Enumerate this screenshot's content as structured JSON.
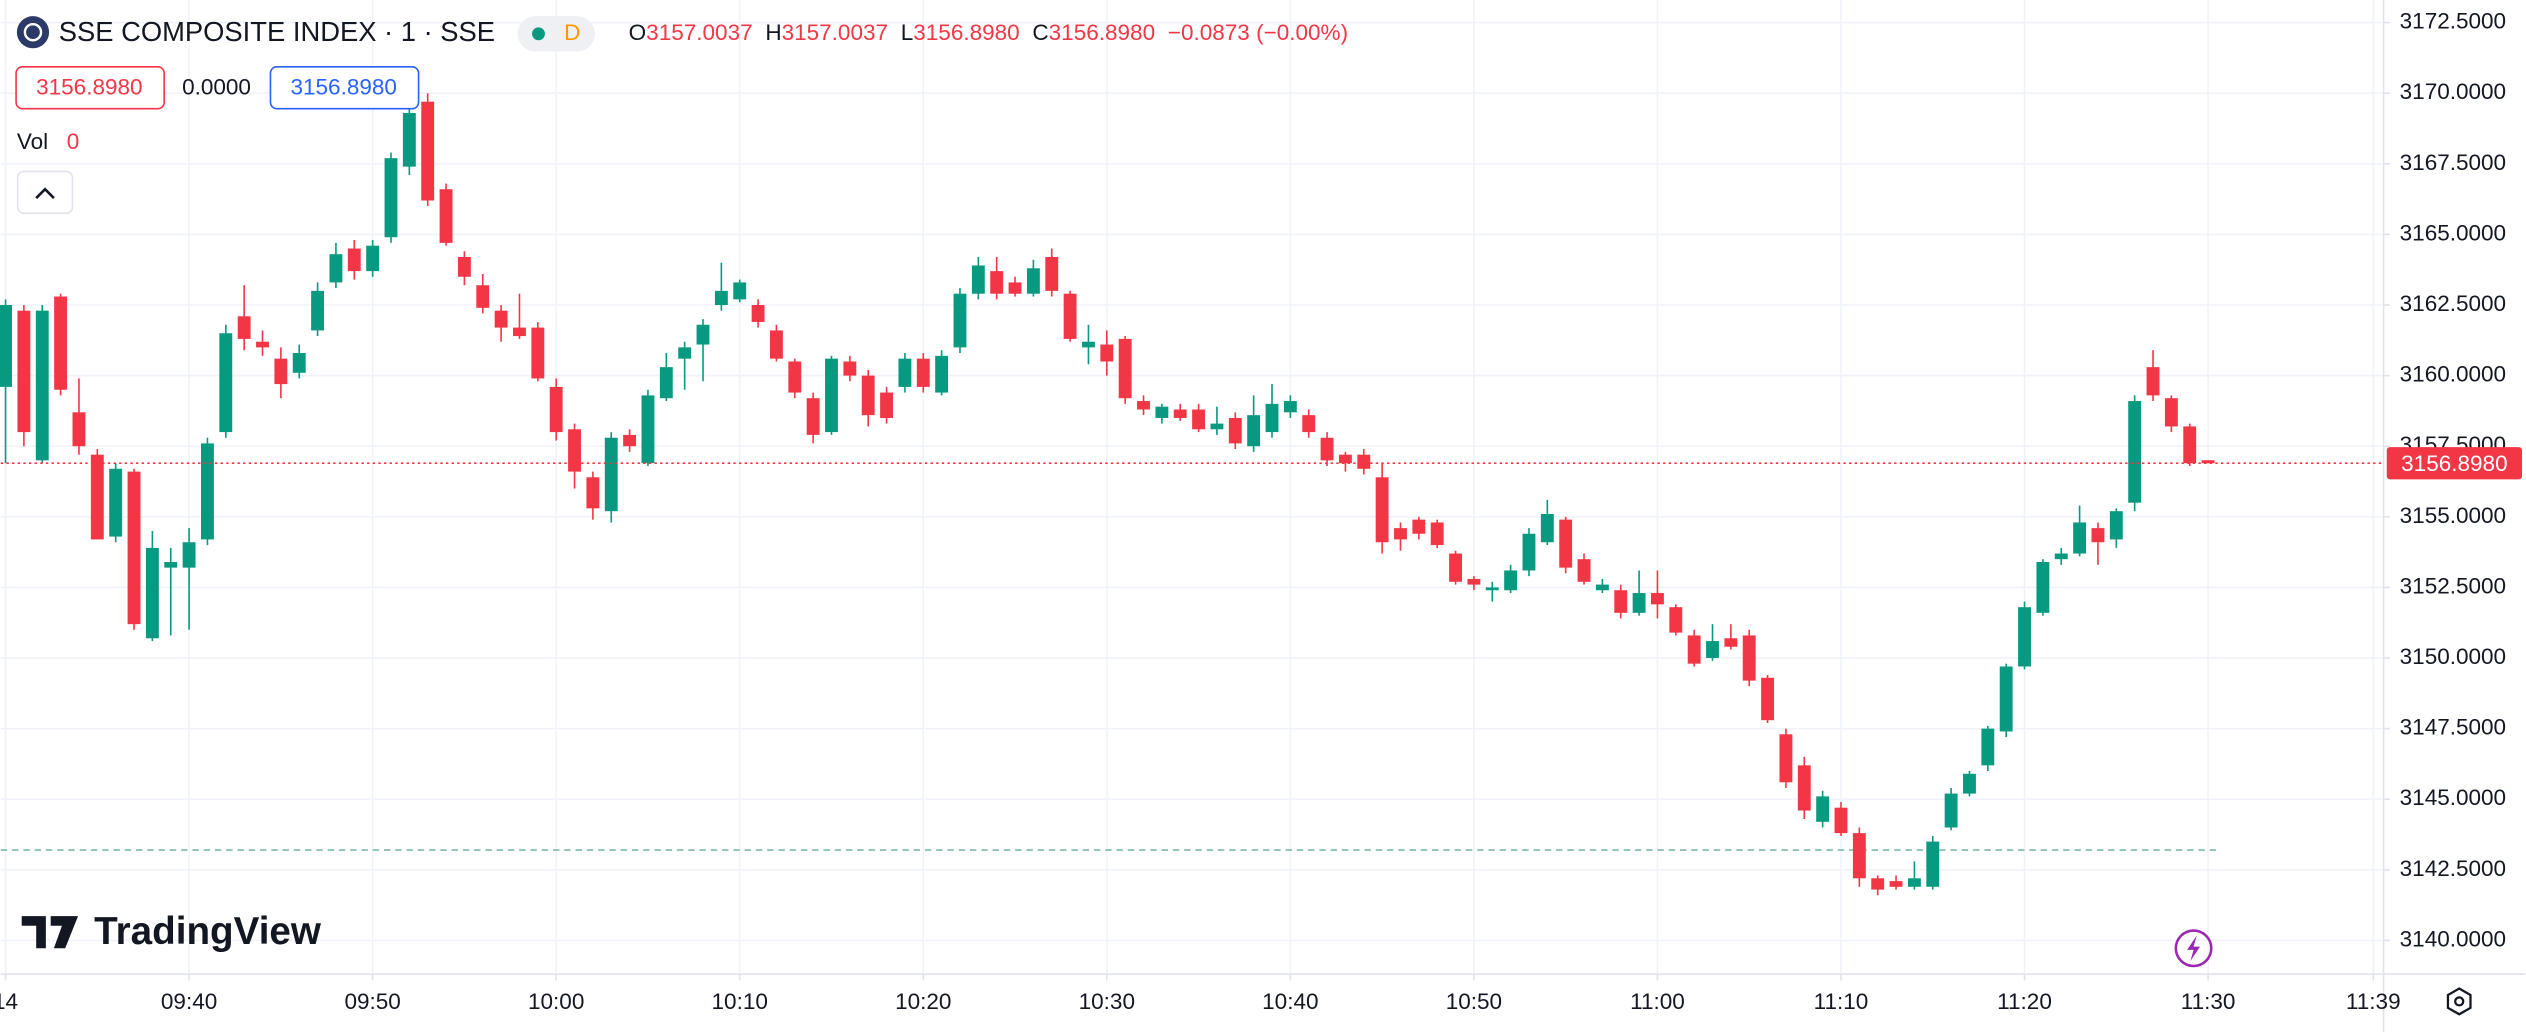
{
  "header": {
    "symbol": "SSE COMPOSITE INDEX · 1 · SSE",
    "badge": "D",
    "o_label": "O",
    "o": "3157.0037",
    "h_label": "H",
    "h": "3157.0037",
    "l_label": "L",
    "l": "3156.8980",
    "c_label": "C",
    "c": "3156.8980",
    "change": "−0.0873 (−0.00%)",
    "bid": "3156.8980",
    "spread": "0.0000",
    "ask": "3156.8980",
    "vol_label": "Vol",
    "vol": "0",
    "brand": "TradingView"
  },
  "chart_data": {
    "type": "candlestick",
    "up_color": "#089981",
    "down_color": "#f23645",
    "grid": true,
    "xlim": [
      -0.26,
      129.56
    ],
    "ylim": [
      3138.81,
      3173.3
    ],
    "xticks": [
      {
        "value": 0,
        "label": "14"
      },
      {
        "value": 10,
        "label": "09:40"
      },
      {
        "value": 20,
        "label": "09:50"
      },
      {
        "value": 30,
        "label": "10:00"
      },
      {
        "value": 40,
        "label": "10:10"
      },
      {
        "value": 50,
        "label": "10:20"
      },
      {
        "value": 60,
        "label": "10:30"
      },
      {
        "value": 70,
        "label": "10:40"
      },
      {
        "value": 80,
        "label": "10:50"
      },
      {
        "value": 90,
        "label": "11:00"
      },
      {
        "value": 100,
        "label": "11:10"
      },
      {
        "value": 110,
        "label": "11:20"
      },
      {
        "value": 120,
        "label": "11:30"
      },
      {
        "value": 129,
        "label": "11:39"
      }
    ],
    "yticks": [
      {
        "value": 3140,
        "label": "3140.0000"
      },
      {
        "value": 3142.5,
        "label": "3142.5000"
      },
      {
        "value": 3145,
        "label": "3145.0000"
      },
      {
        "value": 3147.5,
        "label": "3147.5000"
      },
      {
        "value": 3150,
        "label": "3150.0000"
      },
      {
        "value": 3152.5,
        "label": "3152.5000"
      },
      {
        "value": 3155,
        "label": "3155.0000"
      },
      {
        "value": 3157.5,
        "label": "3157.5000"
      },
      {
        "value": 3160,
        "label": "3160.0000"
      },
      {
        "value": 3162.5,
        "label": "3162.5000"
      },
      {
        "value": 3165,
        "label": "3165.0000"
      },
      {
        "value": 3167.5,
        "label": "3167.5000"
      },
      {
        "value": 3170,
        "label": "3170.0000"
      },
      {
        "value": 3172.5,
        "label": "3172.5000"
      }
    ],
    "last_price": {
      "value": 3156.898,
      "label": "3156.8980"
    },
    "baseline": 3143.2,
    "open": [
      3159.6,
      3162.3,
      3157.0,
      3162.8,
      3158.7,
      3157.2,
      3154.3,
      3156.6,
      3150.7,
      3153.2,
      3153.2,
      3154.2,
      3158.0,
      3162.1,
      3161.2,
      3160.6,
      3160.1,
      3161.6,
      3163.3,
      3164.5,
      3163.7,
      3164.9,
      3167.4,
      3169.7,
      3166.6,
      3164.2,
      3163.2,
      3162.3,
      3161.7,
      3161.7,
      3159.6,
      3158.1,
      3156.4,
      3155.2,
      3157.9,
      3156.9,
      3159.2,
      3160.6,
      3161.1,
      3162.5,
      3162.7,
      3162.5,
      3161.6,
      3160.5,
      3159.2,
      3158.0,
      3160.5,
      3160.0,
      3159.4,
      3159.6,
      3160.6,
      3159.4,
      3161.0,
      3162.9,
      3163.7,
      3163.3,
      3162.9,
      3164.2,
      3162.9,
      3161.0,
      3161.1,
      3161.3,
      3159.1,
      3158.5,
      3158.8,
      3158.8,
      3158.1,
      3158.5,
      3157.5,
      3158.0,
      3158.7,
      3158.6,
      3157.8,
      3157.2,
      3157.2,
      3156.4,
      3154.6,
      3154.9,
      3154.8,
      3153.7,
      3152.8,
      3152.4,
      3152.4,
      3153.1,
      3154.1,
      3154.9,
      3153.5,
      3152.4,
      3152.4,
      3151.6,
      3152.3,
      3151.8,
      3150.8,
      3150.0,
      3150.7,
      3150.8,
      3149.3,
      3147.3,
      3146.2,
      3144.2,
      3144.7,
      3143.8,
      3142.2,
      3142.1,
      3141.9,
      3141.9,
      3144.0,
      3145.2,
      3146.2,
      3147.4,
      3149.7,
      3151.6,
      3153.5,
      3153.7,
      3154.6,
      3154.2,
      3155.5,
      3160.3,
      3159.2,
      3158.2,
      3157.0037
    ],
    "high": [
      3162.7,
      3162.5,
      3162.5,
      3162.9,
      3159.9,
      3157.4,
      3156.9,
      3156.7,
      3154.5,
      3153.9,
      3154.6,
      3157.8,
      3161.8,
      3163.2,
      3161.6,
      3161.0,
      3161.1,
      3163.3,
      3164.7,
      3164.8,
      3164.8,
      3167.9,
      3170.0,
      3170.0,
      3166.8,
      3164.4,
      3163.6,
      3162.5,
      3162.9,
      3161.9,
      3159.9,
      3158.3,
      3156.6,
      3158.0,
      3158.1,
      3159.5,
      3160.8,
      3161.2,
      3162.0,
      3164.0,
      3163.4,
      3162.7,
      3161.8,
      3160.6,
      3159.4,
      3160.7,
      3160.7,
      3160.2,
      3159.6,
      3160.8,
      3160.8,
      3160.9,
      3163.1,
      3164.2,
      3164.2,
      3163.5,
      3164.1,
      3164.5,
      3163.0,
      3161.8,
      3161.6,
      3161.4,
      3159.3,
      3159.0,
      3159.0,
      3159.0,
      3158.9,
      3158.7,
      3159.3,
      3159.7,
      3159.3,
      3158.8,
      3158.0,
      3157.3,
      3157.4,
      3156.9,
      3154.8,
      3155.0,
      3154.9,
      3153.8,
      3152.9,
      3152.7,
      3153.3,
      3154.6,
      3155.6,
      3155.0,
      3153.7,
      3152.8,
      3152.6,
      3153.1,
      3153.1,
      3151.9,
      3151.0,
      3151.2,
      3151.2,
      3151.0,
      3149.4,
      3147.5,
      3146.5,
      3145.3,
      3144.9,
      3144.0,
      3142.3,
      3142.3,
      3142.8,
      3143.7,
      3145.4,
      3146.0,
      3147.6,
      3149.8,
      3152.0,
      3153.5,
      3153.9,
      3155.4,
      3154.8,
      3155.3,
      3159.3,
      3160.9,
      3159.3,
      3158.3,
      3157.0037
    ],
    "low": [
      3156.9,
      3157.5,
      3156.9,
      3159.3,
      3157.2,
      3154.2,
      3154.1,
      3151.0,
      3150.6,
      3150.8,
      3151.0,
      3154.0,
      3157.8,
      3160.9,
      3160.7,
      3159.2,
      3159.9,
      3161.4,
      3163.1,
      3163.4,
      3163.5,
      3164.7,
      3167.1,
      3166.0,
      3164.6,
      3163.2,
      3162.2,
      3161.2,
      3161.3,
      3159.8,
      3157.7,
      3156.0,
      3154.9,
      3154.8,
      3157.3,
      3156.8,
      3159.1,
      3159.5,
      3159.8,
      3162.3,
      3162.6,
      3161.7,
      3160.5,
      3159.2,
      3157.6,
      3157.9,
      3159.8,
      3158.2,
      3158.3,
      3159.4,
      3159.4,
      3159.3,
      3160.8,
      3162.7,
      3162.7,
      3162.8,
      3162.8,
      3162.8,
      3161.2,
      3160.4,
      3160.0,
      3159.0,
      3158.6,
      3158.3,
      3158.4,
      3158.0,
      3157.9,
      3157.4,
      3157.3,
      3157.8,
      3158.5,
      3157.8,
      3156.8,
      3156.6,
      3156.5,
      3153.7,
      3153.8,
      3154.2,
      3153.9,
      3152.6,
      3152.4,
      3152.0,
      3152.3,
      3152.9,
      3154.0,
      3153.0,
      3152.6,
      3152.3,
      3151.4,
      3151.5,
      3151.4,
      3150.8,
      3149.7,
      3149.9,
      3150.3,
      3149.0,
      3147.7,
      3145.4,
      3144.3,
      3144.0,
      3143.7,
      3141.9,
      3141.6,
      3141.8,
      3141.8,
      3141.8,
      3143.9,
      3145.1,
      3146.0,
      3147.2,
      3149.6,
      3151.5,
      3153.3,
      3153.6,
      3153.3,
      3153.9,
      3155.2,
      3159.1,
      3158.0,
      3156.8,
      3156.898
    ],
    "close": [
      3162.5,
      3158.0,
      3162.3,
      3159.5,
      3157.5,
      3154.2,
      3156.7,
      3151.2,
      3153.9,
      3153.4,
      3154.1,
      3157.6,
      3161.5,
      3161.3,
      3161.0,
      3159.7,
      3160.8,
      3163.0,
      3164.3,
      3163.7,
      3164.6,
      3167.7,
      3169.3,
      3166.2,
      3164.7,
      3163.5,
      3162.4,
      3161.7,
      3161.4,
      3159.9,
      3158.0,
      3156.6,
      3155.3,
      3157.8,
      3157.5,
      3159.3,
      3160.3,
      3161.0,
      3161.8,
      3163.0,
      3163.3,
      3161.9,
      3160.6,
      3159.4,
      3157.9,
      3160.6,
      3160.0,
      3158.6,
      3158.5,
      3160.6,
      3159.6,
      3160.7,
      3162.9,
      3163.9,
      3162.9,
      3162.9,
      3163.8,
      3163.0,
      3161.3,
      3161.2,
      3160.5,
      3159.2,
      3158.8,
      3158.9,
      3158.5,
      3158.1,
      3158.3,
      3157.6,
      3158.6,
      3159.0,
      3159.1,
      3158.0,
      3157.0,
      3156.9,
      3156.7,
      3154.1,
      3154.2,
      3154.4,
      3154.0,
      3152.7,
      3152.6,
      3152.5,
      3153.1,
      3154.4,
      3155.1,
      3153.2,
      3152.7,
      3152.6,
      3151.6,
      3152.3,
      3151.9,
      3150.9,
      3149.8,
      3150.6,
      3150.4,
      3149.2,
      3147.8,
      3145.6,
      3144.6,
      3145.1,
      3143.8,
      3142.2,
      3141.8,
      3141.9,
      3142.2,
      3143.5,
      3145.2,
      3145.9,
      3147.5,
      3149.7,
      3151.8,
      3153.4,
      3153.7,
      3154.8,
      3154.1,
      3155.2,
      3159.1,
      3159.3,
      3158.2,
      3156.9,
      3156.898
    ]
  }
}
